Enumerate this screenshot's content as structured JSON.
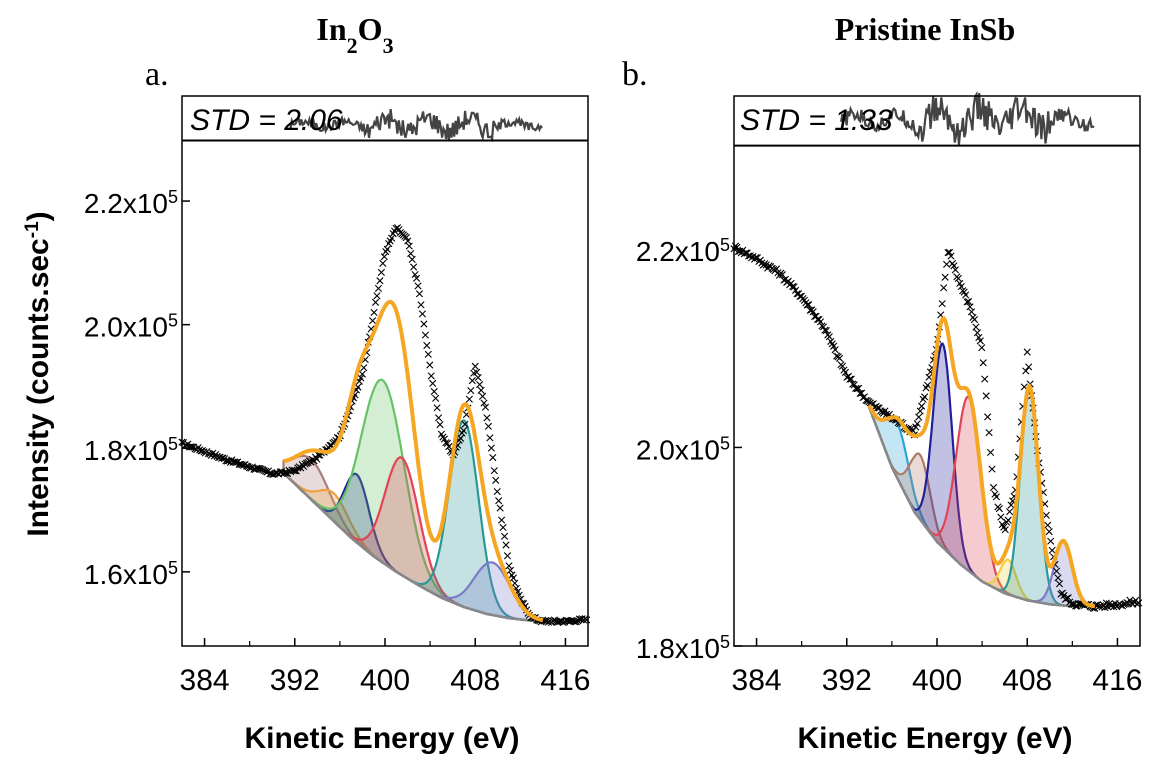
{
  "figure": {
    "ylabel_main": "Intensity (counts.sec",
    "ylabel_sup": "-1",
    "ylabel_close": ")",
    "colors": {
      "axis": "#000000",
      "data_marker": "#000000",
      "envelope": "#f5a623",
      "residual": "#444444",
      "background_line": "#888888"
    }
  },
  "chart_data": [
    {
      "panel_letter": "a.",
      "title_base": "In",
      "title_sub1": "2",
      "title_mid": "O",
      "title_sub2": "3",
      "type": "line",
      "xlabel": "Kinetic Energy (eV)",
      "ylabel": "Intensity (counts.sec-1)",
      "std_label": "STD = 2.06",
      "xlim": [
        382,
        418
      ],
      "ylim": [
        148000,
        237000
      ],
      "xticks": [
        384,
        392,
        400,
        408,
        416
      ],
      "yticks": [
        {
          "value": 160000,
          "mantissa": "1.6x10",
          "exp": "5"
        },
        {
          "value": 180000,
          "mantissa": "1.8x10",
          "exp": "5"
        },
        {
          "value": 200000,
          "mantissa": "2.0x10",
          "exp": "5"
        },
        {
          "value": 220000,
          "mantissa": "2.2x10",
          "exp": "5"
        }
      ],
      "residual_band": [
        226000,
        237000
      ],
      "residual_baseline": 229800,
      "residual_x": [
        391.5,
        414
      ],
      "data_x": [
        382,
        384,
        386,
        388,
        390,
        391,
        392,
        394,
        396,
        398,
        400,
        401,
        402,
        403,
        404,
        405,
        406,
        407,
        408,
        409,
        410,
        411,
        412,
        413,
        414,
        416,
        418
      ],
      "data_y": [
        180800,
        179500,
        178100,
        177000,
        175900,
        176000,
        176400,
        178500,
        182000,
        192000,
        211600,
        215700,
        213700,
        205700,
        193000,
        182500,
        178800,
        183000,
        193500,
        185700,
        172500,
        161000,
        155500,
        152600,
        152000,
        152000,
        152300
      ],
      "baseline": [
        {
          "x": 391,
          "y": 176000
        },
        {
          "x": 393,
          "y": 172500
        },
        {
          "x": 395,
          "y": 169000
        },
        {
          "x": 397,
          "y": 165500
        },
        {
          "x": 399,
          "y": 162500
        },
        {
          "x": 401,
          "y": 160000
        },
        {
          "x": 403,
          "y": 157800
        },
        {
          "x": 405,
          "y": 155800
        },
        {
          "x": 407,
          "y": 154300
        },
        {
          "x": 409,
          "y": 153200
        },
        {
          "x": 411,
          "y": 152500
        },
        {
          "x": 413,
          "y": 152100
        },
        {
          "x": 414,
          "y": 152000
        }
      ],
      "components": [
        {
          "center": 393.5,
          "height": 6500,
          "width": 1.6,
          "color": "#a87c7c"
        },
        {
          "center": 395.5,
          "height": 4500,
          "width": 1.3,
          "color": "#f0a040"
        },
        {
          "center": 397.5,
          "height": 11000,
          "width": 1.1,
          "color": "#20209a"
        },
        {
          "center": 399.8,
          "height": 29500,
          "width": 1.9,
          "color": "#66c266"
        },
        {
          "center": 401.5,
          "height": 19000,
          "width": 1.5,
          "color": "#e04455"
        },
        {
          "center": 407.0,
          "height": 30200,
          "width": 1.3,
          "color": "#2a9898"
        },
        {
          "center": 409.5,
          "height": 8500,
          "width": 1.6,
          "color": "#7a7ac8"
        }
      ]
    },
    {
      "panel_letter": "b.",
      "title_base": "Pristine InSb",
      "type": "line",
      "xlabel": "Kinetic Energy (eV)",
      "ylabel": "",
      "std_label": "STD = 1.33",
      "xlim": [
        382,
        418
      ],
      "ylim": [
        180000,
        235400
      ],
      "xticks": [
        384,
        392,
        400,
        408,
        416
      ],
      "yticks": [
        {
          "value": 180000,
          "mantissa": "1.8x10",
          "exp": "5"
        },
        {
          "value": 200000,
          "mantissa": "2.0x10",
          "exp": "5"
        },
        {
          "value": 220000,
          "mantissa": "2.2x10",
          "exp": "5"
        }
      ],
      "residual_band": [
        228300,
        235400
      ],
      "residual_baseline": 230400,
      "residual_x": [
        391.5,
        414
      ],
      "data_x": [
        382,
        384,
        386,
        388,
        390,
        392,
        394,
        396,
        398,
        400,
        401,
        402,
        403,
        404,
        405,
        406,
        407,
        408,
        409,
        410,
        411,
        412,
        413,
        414,
        416,
        418
      ],
      "data_y": [
        220200,
        219000,
        217600,
        215200,
        212100,
        207200,
        204500,
        203000,
        201500,
        210000,
        220000,
        216600,
        214000,
        210000,
        196000,
        191500,
        196000,
        209400,
        198600,
        191000,
        185300,
        184300,
        184100,
        184000,
        184200,
        184500
      ],
      "baseline": [
        {
          "x": 394,
          "y": 204000
        },
        {
          "x": 396,
          "y": 198000
        },
        {
          "x": 398,
          "y": 193500
        },
        {
          "x": 400,
          "y": 190500
        },
        {
          "x": 402,
          "y": 188300
        },
        {
          "x": 404,
          "y": 186500
        },
        {
          "x": 406,
          "y": 185300
        },
        {
          "x": 408,
          "y": 184600
        },
        {
          "x": 410,
          "y": 184200
        },
        {
          "x": 412,
          "y": 184000
        },
        {
          "x": 414,
          "y": 184000
        }
      ],
      "components": [
        {
          "center": 396.5,
          "height": 5500,
          "width": 1.0,
          "color": "#2aa6d6"
        },
        {
          "center": 398.5,
          "height": 6500,
          "width": 0.9,
          "color": "#b07a6a"
        },
        {
          "center": 400.5,
          "height": 20500,
          "width": 0.85,
          "color": "#20209a"
        },
        {
          "center": 402.8,
          "height": 17500,
          "width": 1.1,
          "color": "#e04455"
        },
        {
          "center": 406.3,
          "height": 3500,
          "width": 0.7,
          "color": "#f0d040"
        },
        {
          "center": 408.2,
          "height": 21500,
          "width": 0.8,
          "color": "#2a9898"
        },
        {
          "center": 411.2,
          "height": 6500,
          "width": 0.8,
          "color": "#7a7ac8"
        }
      ]
    }
  ]
}
